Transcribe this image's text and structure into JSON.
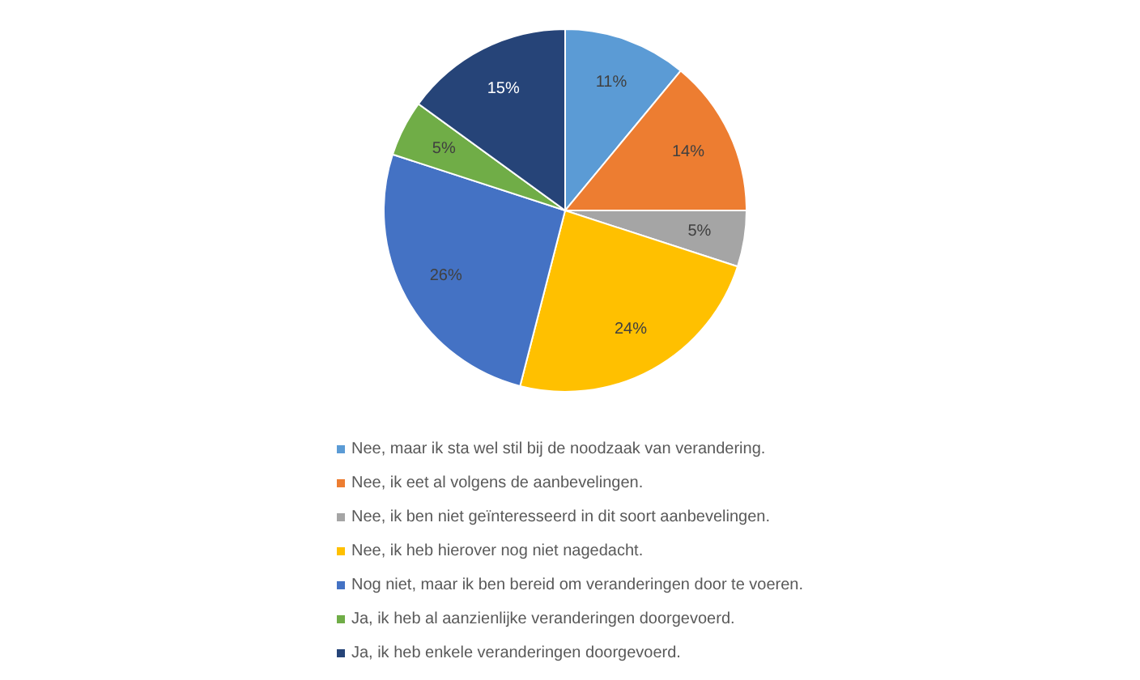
{
  "chart_data": {
    "type": "pie",
    "categories": [
      "Nee, maar ik sta wel stil bij de noodzaak van verandering.",
      "Nee, ik eet al volgens de aanbevelingen.",
      "Nee, ik ben niet geïnteresseerd in dit soort aanbevelingen.",
      "Nee, ik heb hierover nog niet nagedacht.",
      "Nog niet, maar ik ben bereid om veranderingen door te voeren.",
      "Ja, ik heb al aanzienlijke veranderingen doorgevoerd.",
      "Ja, ik heb enkele veranderingen doorgevoerd."
    ],
    "values": [
      11,
      14,
      5,
      24,
      26,
      5,
      15
    ],
    "colors": [
      "#5b9bd5",
      "#ed7d31",
      "#a5a5a5",
      "#ffc000",
      "#4472c4",
      "#70ad47",
      "#264478"
    ],
    "value_labels": [
      "11%",
      "14%",
      "5%",
      "24%",
      "26%",
      "5%",
      "15%"
    ],
    "legend": "bottom"
  }
}
